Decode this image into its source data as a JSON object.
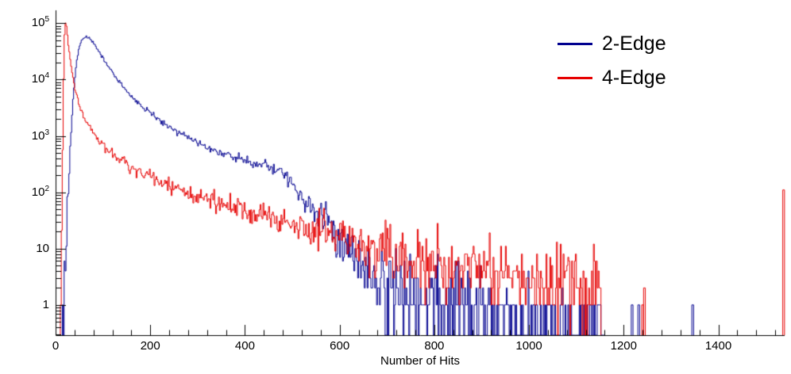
{
  "chart_data": {
    "type": "line",
    "subtype": "step-histogram",
    "title": "",
    "xlabel": "Number of Hits",
    "ylabel": "",
    "yscale": "log",
    "xlim": [
      0,
      1540
    ],
    "ylim": [
      0.29,
      170000
    ],
    "grid": false,
    "legend_position": "top-right",
    "axis_color": "#000000",
    "x_ticks": {
      "major": [
        0,
        200,
        400,
        600,
        800,
        1000,
        1200,
        1400
      ],
      "minor_step": 40
    },
    "y_ticks": [
      {
        "v": 1,
        "label": "1",
        "exp": ""
      },
      {
        "v": 10,
        "label": "10",
        "exp": ""
      },
      {
        "v": 100,
        "label": "10",
        "exp": "2"
      },
      {
        "v": 1000,
        "label": "10",
        "exp": "3"
      },
      {
        "v": 10000,
        "label": "10",
        "exp": "4"
      },
      {
        "v": 100000,
        "label": "10",
        "exp": "5"
      }
    ],
    "series": [
      {
        "name": "2-Edge",
        "color": "#00008f",
        "seed": 20,
        "bin_width": 2,
        "range": [
          14,
          1160
        ],
        "peak": {
          "x": 65,
          "y": 58000
        },
        "anchors": [
          [
            14,
            0.5
          ],
          [
            18,
            2
          ],
          [
            22,
            15
          ],
          [
            26,
            80
          ],
          [
            30,
            400
          ],
          [
            35,
            2500
          ],
          [
            40,
            9000
          ],
          [
            45,
            22000
          ],
          [
            50,
            38000
          ],
          [
            55,
            50000
          ],
          [
            60,
            56000
          ],
          [
            65,
            58000
          ],
          [
            72,
            54000
          ],
          [
            80,
            44000
          ],
          [
            90,
            32000
          ],
          [
            100,
            24000
          ],
          [
            110,
            18000
          ],
          [
            120,
            13500
          ],
          [
            135,
            9000
          ],
          [
            150,
            6300
          ],
          [
            165,
            4600
          ],
          [
            180,
            3500
          ],
          [
            200,
            2500
          ],
          [
            220,
            1900
          ],
          [
            240,
            1500
          ],
          [
            260,
            1150
          ],
          [
            280,
            950
          ],
          [
            300,
            780
          ],
          [
            320,
            640
          ],
          [
            340,
            540
          ],
          [
            360,
            470
          ],
          [
            380,
            420
          ],
          [
            400,
            370
          ],
          [
            415,
            340
          ],
          [
            430,
            330
          ],
          [
            445,
            310
          ],
          [
            460,
            280
          ],
          [
            470,
            250
          ],
          [
            480,
            210
          ],
          [
            490,
            170
          ],
          [
            500,
            135
          ],
          [
            510,
            105
          ],
          [
            520,
            85
          ],
          [
            530,
            70
          ],
          [
            545,
            52
          ],
          [
            560,
            38
          ],
          [
            575,
            28
          ],
          [
            590,
            20
          ],
          [
            605,
            14
          ],
          [
            620,
            10
          ],
          [
            635,
            7
          ],
          [
            650,
            5
          ],
          [
            670,
            3.5
          ],
          [
            700,
            2.5
          ],
          [
            740,
            2
          ],
          [
            780,
            1.8
          ],
          [
            820,
            1.6
          ],
          [
            860,
            1.4
          ],
          [
            900,
            1.2
          ],
          [
            950,
            0.8
          ],
          [
            1000,
            0.55
          ],
          [
            1060,
            0.4
          ],
          [
            1120,
            0.3
          ],
          [
            1160,
            0.25
          ]
        ],
        "spikes": [
          [
            1216,
            1
          ],
          [
            1230,
            1
          ],
          [
            1344,
            1
          ]
        ]
      },
      {
        "name": "4-Edge",
        "color": "#e60000",
        "seed": 77,
        "bin_width": 2,
        "range": [
          10,
          1152
        ],
        "peak": {
          "x": 20,
          "y": 110000
        },
        "anchors": [
          [
            10,
            0.5
          ],
          [
            12,
            5
          ],
          [
            14,
            100
          ],
          [
            16,
            3000
          ],
          [
            18,
            40000
          ],
          [
            20,
            110000
          ],
          [
            23,
            90000
          ],
          [
            26,
            50000
          ],
          [
            30,
            26000
          ],
          [
            34,
            15000
          ],
          [
            38,
            9500
          ],
          [
            42,
            6500
          ],
          [
            46,
            4800
          ],
          [
            50,
            3700
          ],
          [
            55,
            2800
          ],
          [
            60,
            2200
          ],
          [
            65,
            1800
          ],
          [
            70,
            1500
          ],
          [
            80,
            1100
          ],
          [
            90,
            850
          ],
          [
            100,
            680
          ],
          [
            110,
            560
          ],
          [
            120,
            470
          ],
          [
            135,
            380
          ],
          [
            150,
            310
          ],
          [
            165,
            260
          ],
          [
            180,
            225
          ],
          [
            200,
            185
          ],
          [
            220,
            155
          ],
          [
            240,
            130
          ],
          [
            260,
            112
          ],
          [
            280,
            97
          ],
          [
            300,
            84
          ],
          [
            320,
            73
          ],
          [
            340,
            64
          ],
          [
            360,
            57
          ],
          [
            380,
            51
          ],
          [
            400,
            46
          ],
          [
            420,
            41
          ],
          [
            440,
            37
          ],
          [
            460,
            33
          ],
          [
            480,
            30
          ],
          [
            500,
            27
          ],
          [
            520,
            24
          ],
          [
            540,
            21
          ],
          [
            560,
            19
          ],
          [
            580,
            17
          ],
          [
            600,
            15
          ],
          [
            620,
            13
          ],
          [
            640,
            11.5
          ],
          [
            660,
            10
          ],
          [
            680,
            9
          ],
          [
            700,
            8
          ],
          [
            730,
            7
          ],
          [
            760,
            6.2
          ],
          [
            790,
            5.6
          ],
          [
            820,
            5
          ],
          [
            850,
            4.6
          ],
          [
            880,
            4.2
          ],
          [
            910,
            3.8
          ],
          [
            940,
            3.5
          ],
          [
            970,
            3.2
          ],
          [
            1000,
            3
          ],
          [
            1030,
            2.8
          ],
          [
            1060,
            2.6
          ],
          [
            1090,
            2.4
          ],
          [
            1120,
            2.2
          ],
          [
            1152,
            2
          ]
        ],
        "spikes": [
          [
            1238,
            1
          ],
          [
            1242,
            2
          ],
          [
            1536,
            110
          ]
        ]
      }
    ]
  }
}
